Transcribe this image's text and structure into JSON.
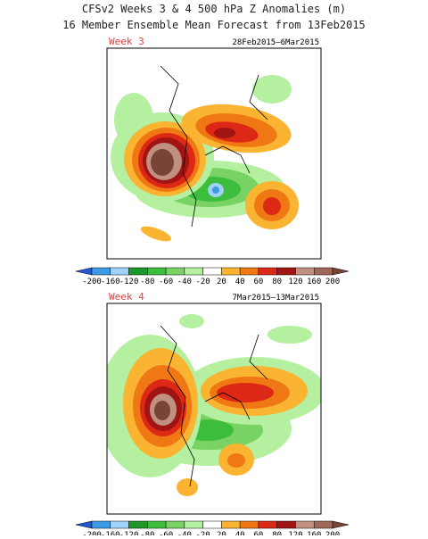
{
  "title": "CFSv2 Weeks 3 & 4 500 hPa Z Anomalies (m)",
  "subtitle": "16 Member Ensemble Mean Forecast from 13Feb2015",
  "panels": [
    {
      "label": "Week 3",
      "dates": "28Feb2015–6Mar2015"
    },
    {
      "label": "Week 4",
      "dates": "7Mar2015–13Mar2015"
    }
  ],
  "colorbar": {
    "levels": [
      -200,
      -160,
      -120,
      -80,
      -60,
      -40,
      -20,
      20,
      40,
      60,
      80,
      120,
      160,
      200
    ],
    "colors": [
      "#1e5ad2",
      "#3c9be6",
      "#a0d2fa",
      "#1e9628",
      "#3cbe3c",
      "#78d264",
      "#b4f0a0",
      "#ffffff",
      "#fab432",
      "#f07814",
      "#dc2814",
      "#a01414",
      "#c09080",
      "#a06858",
      "#784438"
    ]
  }
}
